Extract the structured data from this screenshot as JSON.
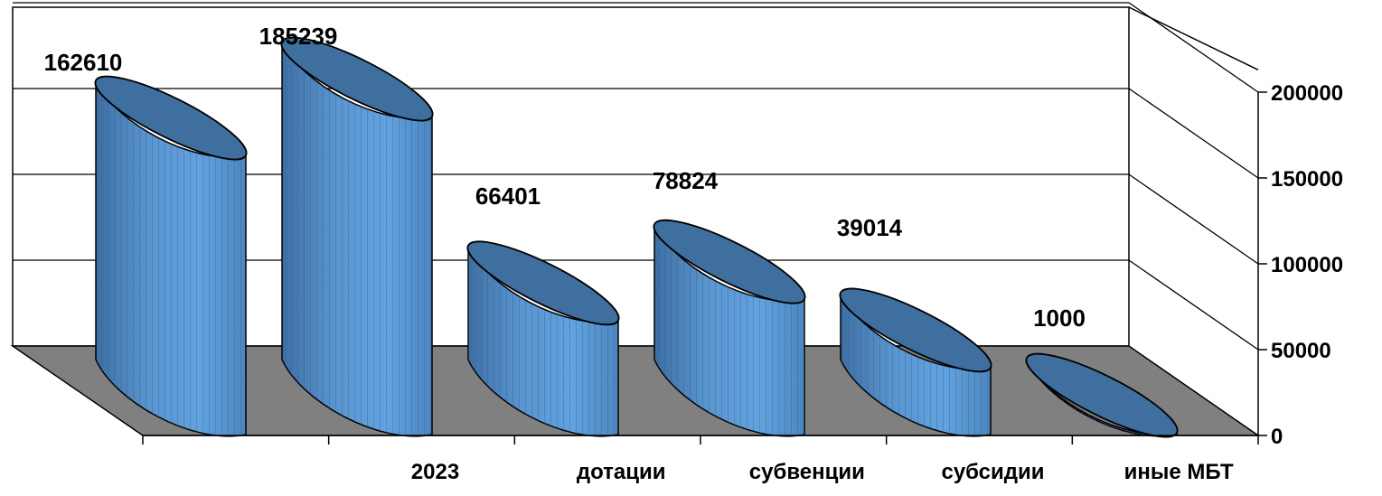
{
  "chart_data": {
    "type": "bar",
    "style": "3d-cylinder",
    "categories": [
      "",
      "2023",
      "дотации",
      "субвенции",
      "субсидии",
      "иные МБТ"
    ],
    "values": [
      162610,
      185239,
      66401,
      78824,
      39014,
      1000
    ],
    "data_labels": [
      "162610",
      "185239",
      "66401",
      "78824",
      "39014",
      "1000"
    ],
    "y_ticks": [
      "0",
      "50000",
      "100000",
      "150000",
      "200000"
    ],
    "ylim": [
      0,
      200000
    ],
    "grid": true,
    "legend": "none",
    "colors": {
      "bar_body": "#5b9bd5",
      "bar_top": "#3f6f9e",
      "floor": "#808080",
      "outline": "#000000"
    }
  }
}
